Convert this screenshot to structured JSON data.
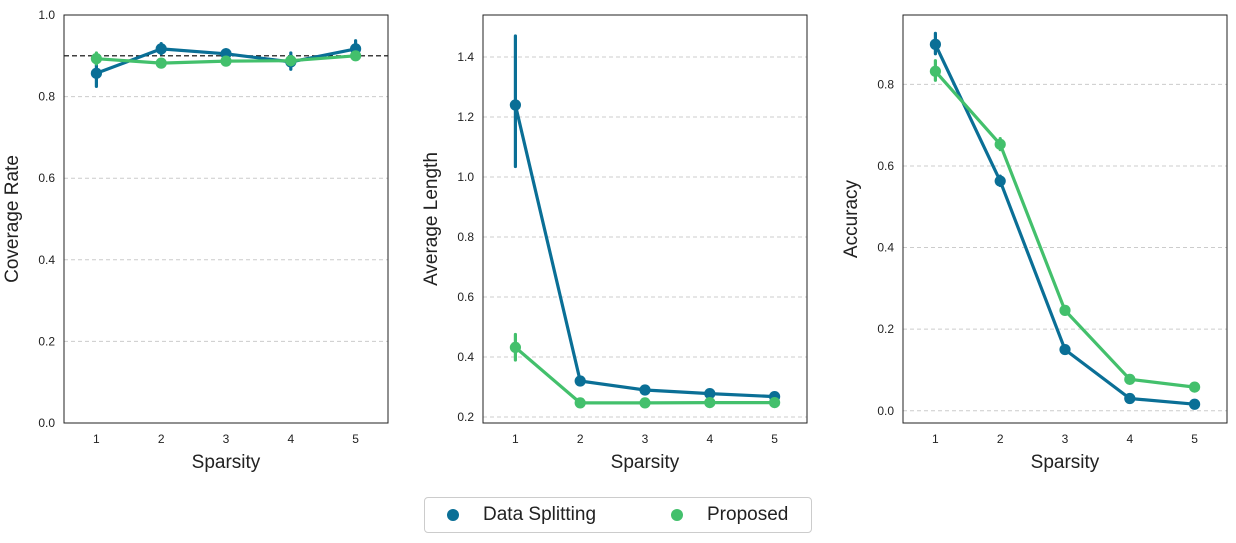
{
  "colors": {
    "data_splitting": "#0a6f96",
    "proposed": "#43c06c",
    "grid": "#cccccc",
    "reference_line": "#000000"
  },
  "legend": {
    "items": [
      {
        "label": "Data Splitting",
        "color": "#0a6f96"
      },
      {
        "label": "Proposed",
        "color": "#43c06c"
      }
    ]
  },
  "chart_data": [
    {
      "type": "line",
      "xlabel": "Sparsity",
      "ylabel": "Coverage Rate",
      "x": [
        1,
        2,
        3,
        4,
        5
      ],
      "ylim": [
        0.0,
        1.0
      ],
      "yticks": [
        "0.0",
        "0.2",
        "0.4",
        "0.6",
        "0.8",
        "1.0"
      ],
      "reference_line": 0.9,
      "grid": "y-dashed",
      "series": [
        {
          "name": "Data Splitting",
          "values": [
            0.857,
            0.917,
            0.905,
            0.885,
            0.917
          ],
          "ci_low": [
            0.825,
            0.905,
            0.895,
            0.867,
            0.903
          ],
          "ci_high": [
            0.885,
            0.93,
            0.915,
            0.907,
            0.937
          ]
        },
        {
          "name": "Proposed",
          "values": [
            0.893,
            0.882,
            0.887,
            0.888,
            0.9
          ],
          "ci_low": [
            0.88,
            0.874,
            0.879,
            0.878,
            0.892
          ],
          "ci_high": [
            0.907,
            0.89,
            0.895,
            0.898,
            0.908
          ]
        }
      ]
    },
    {
      "type": "line",
      "xlabel": "Sparsity",
      "ylabel": "Average Length",
      "x": [
        1,
        2,
        3,
        4,
        5
      ],
      "ylim": [
        0.18,
        1.54
      ],
      "yticks": [
        "0.2",
        "0.4",
        "0.6",
        "0.8",
        "1.0",
        "1.2",
        "1.4"
      ],
      "grid": "y-dashed",
      "series": [
        {
          "name": "Data Splitting",
          "values": [
            1.24,
            0.32,
            0.29,
            0.278,
            0.268
          ],
          "ci_low": [
            1.035,
            0.31,
            0.282,
            0.27,
            0.26
          ],
          "ci_high": [
            1.47,
            0.33,
            0.298,
            0.286,
            0.276
          ]
        },
        {
          "name": "Proposed",
          "values": [
            0.432,
            0.247,
            0.247,
            0.248,
            0.248
          ],
          "ci_low": [
            0.39,
            0.242,
            0.242,
            0.243,
            0.243
          ],
          "ci_high": [
            0.475,
            0.252,
            0.252,
            0.253,
            0.253
          ]
        }
      ]
    },
    {
      "type": "line",
      "xlabel": "Sparsity",
      "ylabel": "Accuracy",
      "x": [
        1,
        2,
        3,
        4,
        5
      ],
      "ylim": [
        -0.03,
        0.97
      ],
      "yticks": [
        "0.0",
        "0.2",
        "0.4",
        "0.6",
        "0.8"
      ],
      "grid": "y-dashed",
      "series": [
        {
          "name": "Data Splitting",
          "values": [
            0.898,
            0.563,
            0.15,
            0.03,
            0.016
          ],
          "ci_low": [
            0.875,
            0.552,
            0.144,
            0.026,
            0.012
          ],
          "ci_high": [
            0.925,
            0.575,
            0.156,
            0.034,
            0.02
          ]
        },
        {
          "name": "Proposed",
          "values": [
            0.832,
            0.653,
            0.246,
            0.077,
            0.058
          ],
          "ci_low": [
            0.81,
            0.64,
            0.238,
            0.071,
            0.052
          ],
          "ci_high": [
            0.858,
            0.667,
            0.254,
            0.083,
            0.064
          ]
        }
      ]
    }
  ]
}
